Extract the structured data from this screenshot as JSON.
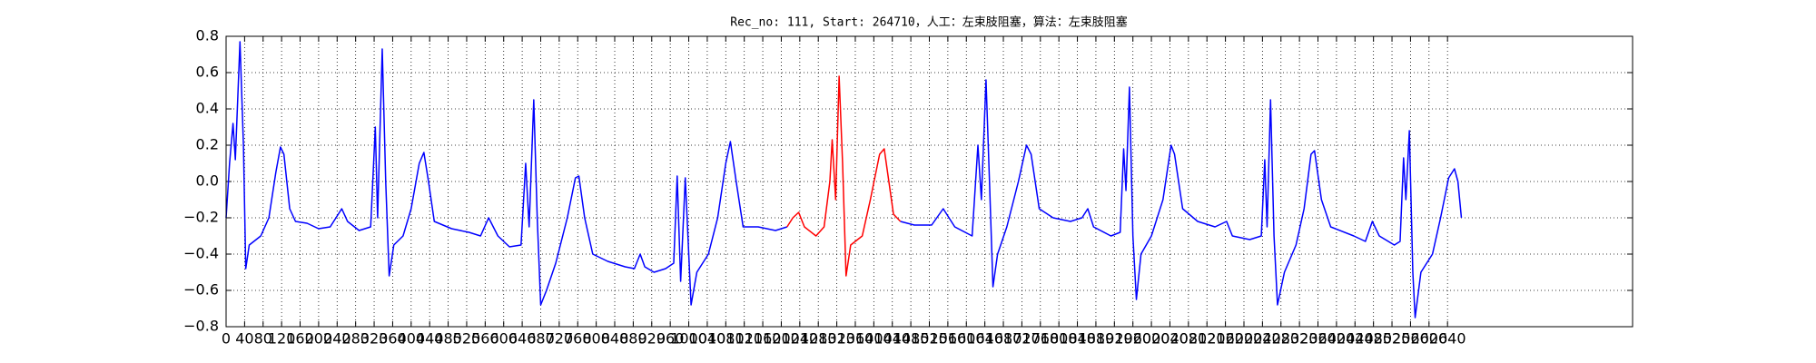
{
  "chart_data": {
    "type": "line",
    "title": "Rec_no: 111, Start: 264710，人工：左束肢阻塞，算法：左束肢阻塞",
    "x": [
      0,
      7.5,
      15,
      20,
      30,
      37.5,
      42.5,
      50,
      75,
      92.5,
      107.5,
      117.5,
      125,
      137.5,
      150,
      175,
      200,
      225,
      250,
      262.5,
      287.5,
      312.5,
      322.5,
      327.5,
      337.5,
      345,
      352.5,
      362.5,
      382.5,
      400,
      417.5,
      427.5,
      437.5,
      450,
      487.5,
      525,
      550,
      567.5,
      587.5,
      612.5,
      637.5,
      647.5,
      655,
      665,
      672.5,
      680,
      692.5,
      712.5,
      737.5,
      755,
      762.5,
      775,
      792.5,
      825,
      862.5,
      882.5,
      895,
      905,
      925,
      950,
      967.5,
      975,
      982.5,
      992.5,
      1005,
      1017.5,
      1042.5,
      1062.5,
      1080,
      1090,
      1102.5,
      1117.5,
      1150,
      1187.5,
      1212.5,
      1225,
      1237.5,
      1250,
      1275,
      1292.5,
      1305,
      1310,
      1317.5,
      1325,
      1332.5,
      1340,
      1350,
      1375,
      1392.5,
      1412.5,
      1422.5,
      1432.5,
      1442.5,
      1457.5,
      1487.5,
      1525,
      1550,
      1575,
      1612.5,
      1625,
      1632.5,
      1642.5,
      1650,
      1657.5,
      1667.5,
      1687.5,
      1712.5,
      1730,
      1740,
      1757.5,
      1787.5,
      1825,
      1850,
      1862.5,
      1875,
      1912.5,
      1932.5,
      1940,
      1945,
      1952.5,
      1960,
      1967.5,
      1977.5,
      2000,
      2025,
      2042.5,
      2050,
      2067.5,
      2100,
      2137.5,
      2162.5,
      2175,
      2212.5,
      2237.5,
      2245,
      2250,
      2257.5,
      2265,
      2272.5,
      2287.5,
      2312.5,
      2330,
      2345,
      2352.5,
      2367.5,
      2387.5,
      2437.5,
      2462.5,
      2477.5,
      2492.5,
      2525,
      2537.5,
      2545,
      2550,
      2557.5,
      2565,
      2570,
      2582.5,
      2607.5,
      2625,
      2642.5,
      2655,
      2662.5,
      2670
    ],
    "series": [
      {
        "color": "#0000ff",
        "values": [
          -0.2,
          0.1,
          0.32,
          0.12,
          0.77,
          0.2,
          -0.48,
          -0.35,
          -0.3,
          -0.2,
          0.05,
          0.19,
          0.15,
          -0.15,
          -0.22,
          -0.23,
          -0.26,
          -0.25,
          -0.15,
          -0.22,
          -0.27,
          -0.25,
          0.3,
          -0.2,
          0.73,
          0.0,
          -0.52,
          -0.35,
          -0.3,
          -0.15,
          0.1,
          0.16,
          0.0,
          -0.22,
          -0.26,
          -0.28,
          -0.3,
          -0.2,
          -0.3,
          -0.36,
          -0.35,
          0.1,
          -0.25,
          0.45,
          -0.2,
          -0.68,
          -0.6,
          -0.45,
          -0.2,
          0.02,
          0.03,
          -0.2,
          -0.4,
          -0.44,
          -0.47,
          -0.48,
          -0.4,
          -0.47,
          -0.5,
          -0.48,
          -0.45,
          0.03,
          -0.55,
          0.02,
          -0.68,
          -0.5,
          -0.4,
          -0.2,
          0.1,
          0.22,
          0.0,
          -0.25,
          -0.25,
          -0.27,
          -0.25,
          null,
          null,
          null,
          null,
          null,
          null,
          null,
          null,
          null,
          null,
          null,
          null,
          null,
          null,
          null,
          null,
          null,
          null,
          -0.22,
          -0.24,
          -0.24,
          -0.15,
          -0.25,
          -0.3,
          0.2,
          -0.1,
          0.56,
          0.0,
          -0.58,
          -0.4,
          -0.25,
          0.0,
          0.2,
          0.15,
          -0.15,
          -0.2,
          -0.22,
          -0.2,
          -0.15,
          -0.25,
          -0.3,
          -0.28,
          0.18,
          -0.05,
          0.52,
          -0.3,
          -0.65,
          -0.4,
          -0.3,
          -0.1,
          0.2,
          0.15,
          -0.15,
          -0.22,
          -0.25,
          -0.22,
          -0.3,
          -0.32,
          -0.3,
          0.12,
          -0.25,
          0.45,
          -0.3,
          -0.68,
          -0.5,
          -0.35,
          -0.15,
          0.15,
          0.17,
          -0.1,
          -0.25,
          -0.3,
          -0.33,
          -0.22,
          -0.3,
          -0.35,
          -0.33,
          0.13,
          -0.1,
          0.28,
          -0.5,
          -0.75,
          -0.5,
          -0.4,
          -0.2,
          0.02,
          0.07,
          0.0,
          -0.2
        ]
      },
      {
        "color": "#ff0000",
        "values": [
          null,
          null,
          null,
          null,
          null,
          null,
          null,
          null,
          null,
          null,
          null,
          null,
          null,
          null,
          null,
          null,
          null,
          null,
          null,
          null,
          null,
          null,
          null,
          null,
          null,
          null,
          null,
          null,
          null,
          null,
          null,
          null,
          null,
          null,
          null,
          null,
          null,
          null,
          null,
          null,
          null,
          null,
          null,
          null,
          null,
          null,
          null,
          null,
          null,
          null,
          null,
          null,
          null,
          null,
          null,
          null,
          null,
          null,
          null,
          null,
          null,
          null,
          null,
          null,
          null,
          null,
          null,
          null,
          null,
          null,
          null,
          null,
          null,
          null,
          -0.25,
          -0.2,
          -0.17,
          -0.25,
          -0.3,
          -0.25,
          0.0,
          0.23,
          -0.1,
          0.58,
          0.1,
          -0.52,
          -0.35,
          -0.3,
          -0.1,
          0.15,
          0.18,
          0.0,
          -0.18,
          -0.22,
          null,
          null,
          null,
          null,
          null,
          null,
          null,
          null,
          null,
          null,
          null,
          null,
          null,
          null,
          null,
          null,
          null,
          null,
          null,
          null,
          null,
          null,
          null,
          null,
          null,
          null,
          null,
          null,
          null,
          null,
          null,
          null,
          null,
          null,
          null,
          null,
          null,
          null,
          null,
          null,
          null,
          null,
          null,
          null,
          null,
          null,
          null,
          null,
          null,
          null,
          null,
          null,
          null,
          null,
          null,
          null,
          null,
          null,
          null,
          null,
          null,
          null,
          null,
          null,
          null,
          null,
          null,
          null,
          null,
          null
        ]
      }
    ],
    "xlim": [
      0,
      3040
    ],
    "xticks": [
      0,
      40,
      80,
      120,
      160,
      200,
      240,
      280,
      320,
      360,
      400,
      440,
      480,
      520,
      560,
      600,
      640,
      680,
      720,
      760,
      800,
      840,
      880,
      920,
      960,
      1000,
      1040,
      1080,
      1120,
      1160,
      1200,
      1240,
      1280,
      1320,
      1360,
      1400,
      1440,
      1480,
      1520,
      1560,
      1600,
      1640,
      1680,
      1720,
      1760,
      1800,
      1840,
      1880,
      1920,
      1960,
      2000,
      2040,
      2080,
      2120,
      2160,
      2200,
      2240,
      2280,
      2320,
      2360,
      2400,
      2440,
      2480,
      2520,
      2560,
      2600,
      2640
    ],
    "ylim": [
      -0.8,
      0.8
    ],
    "yticks": [
      {
        "value": -0.8,
        "label": "−0.8"
      },
      {
        "value": -0.6,
        "label": "−0.6"
      },
      {
        "value": -0.4,
        "label": "−0.4"
      },
      {
        "value": -0.2,
        "label": "−0.2"
      },
      {
        "value": 0,
        "label": "0.0"
      },
      0.2,
      0.4,
      0.6,
      0.8
    ],
    "grid": true
  }
}
